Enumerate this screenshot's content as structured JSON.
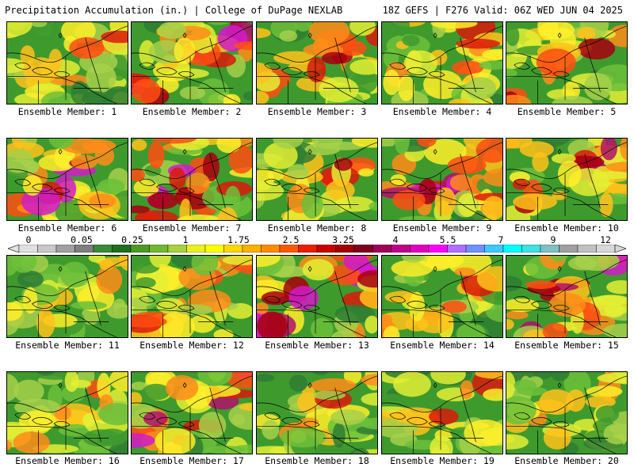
{
  "header": {
    "title_left": "Precipitation Accumulation (in.) | College of DuPage NEXLAB",
    "title_right": "18Z GEFS | F276 Valid: 06Z WED JUN 04 2025"
  },
  "colorbar": {
    "labels": [
      "0",
      "0.05",
      "0.25",
      "1",
      "1.75",
      "2.5",
      "3.25",
      "4",
      "5.5",
      "7",
      "9",
      "12"
    ],
    "colors": [
      "#e0e0e0",
      "#c8c8c8",
      "#a0a0a0",
      "#7f7f7f",
      "#3a8a3a",
      "#1f6f1f",
      "#4d9a24",
      "#70b830",
      "#a8d040",
      "#e8f020",
      "#ffff00",
      "#ffd700",
      "#ffb000",
      "#ff8c00",
      "#ff5a00",
      "#e82000",
      "#c80000",
      "#a00000",
      "#800020",
      "#a0005a",
      "#c0008a",
      "#e000c0",
      "#ff00ff",
      "#b070ff",
      "#7090ff",
      "#40c8ff",
      "#00ffff",
      "#40e0e0",
      "#80c0c0",
      "#a0a0a0",
      "#c0c0c0",
      "#d8d8d8"
    ]
  },
  "members": [
    {
      "label": "Ensemble Member: 1",
      "wetness": 0.35
    },
    {
      "label": "Ensemble Member: 2",
      "wetness": 0.6
    },
    {
      "label": "Ensemble Member: 3",
      "wetness": 0.45
    },
    {
      "label": "Ensemble Member: 4",
      "wetness": 0.5
    },
    {
      "label": "Ensemble Member: 5",
      "wetness": 0.45
    },
    {
      "label": "Ensemble Member: 6",
      "wetness": 0.7
    },
    {
      "label": "Ensemble Member: 7",
      "wetness": 0.8
    },
    {
      "label": "Ensemble Member: 8",
      "wetness": 0.4
    },
    {
      "label": "Ensemble Member: 9",
      "wetness": 0.85
    },
    {
      "label": "Ensemble Member: 10",
      "wetness": 0.6
    },
    {
      "label": "Ensemble Member: 11",
      "wetness": 0.25
    },
    {
      "label": "Ensemble Member: 12",
      "wetness": 0.4
    },
    {
      "label": "Ensemble Member: 13",
      "wetness": 0.85
    },
    {
      "label": "Ensemble Member: 14",
      "wetness": 0.5
    },
    {
      "label": "Ensemble Member: 15",
      "wetness": 0.7
    },
    {
      "label": "Ensemble Member: 16",
      "wetness": 0.3
    },
    {
      "label": "Ensemble Member: 17",
      "wetness": 0.65
    },
    {
      "label": "Ensemble Member: 18",
      "wetness": 0.35
    },
    {
      "label": "Ensemble Member: 19",
      "wetness": 0.35
    },
    {
      "label": "Ensemble Member: 20",
      "wetness": 0.3
    }
  ]
}
